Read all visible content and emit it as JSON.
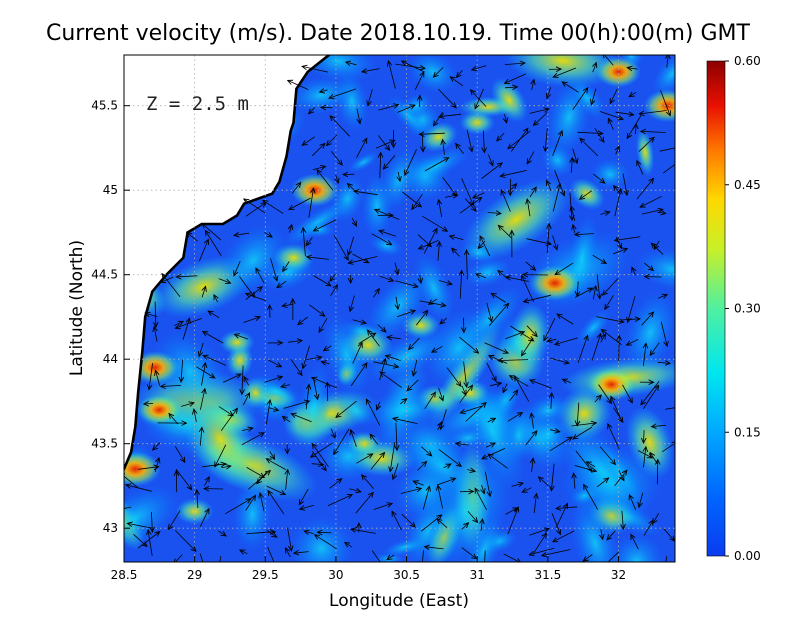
{
  "title": "Current velocity (m/s). Date 2018.10.19. Time 00(h):00(m) GMT",
  "depth_label": "Z = 2.5 m",
  "chart_data": {
    "type": "heatmap",
    "title": "Current velocity (m/s). Date 2018.10.19. Time 00(h):00(m) GMT",
    "xlabel": "Longitude (East)",
    "ylabel": "Latitude (North)",
    "xlim": [
      28.5,
      32.4
    ],
    "ylim": [
      42.8,
      45.8
    ],
    "x_ticks": [
      28.5,
      29,
      29.5,
      30,
      30.5,
      31,
      31.5,
      32
    ],
    "x_tick_labels": [
      "28.5",
      "29",
      "29.5",
      "30",
      "30.5",
      "31",
      "31.5",
      "32"
    ],
    "y_ticks": [
      43,
      43.5,
      44,
      44.5,
      45,
      45.5
    ],
    "y_tick_labels": [
      "43",
      "43.5",
      "44",
      "44.5",
      "45",
      "45.5"
    ],
    "grid": true,
    "colorbar": {
      "min": 0.0,
      "max": 0.6,
      "ticks": [
        0.0,
        0.15,
        0.3,
        0.45,
        0.6
      ],
      "tick_labels": [
        "0.00",
        "0.15",
        "0.30",
        "0.45",
        "0.60"
      ],
      "colormap": "jet"
    },
    "hotspots": [
      {
        "lon": 28.58,
        "lat": 43.35,
        "value": 0.55
      },
      {
        "lon": 28.72,
        "lat": 43.95,
        "value": 0.5
      },
      {
        "lon": 28.75,
        "lat": 43.7,
        "value": 0.45
      },
      {
        "lon": 29.85,
        "lat": 45.0,
        "value": 0.5
      },
      {
        "lon": 29.7,
        "lat": 44.6,
        "value": 0.4
      },
      {
        "lon": 31.55,
        "lat": 44.45,
        "value": 0.55
      },
      {
        "lon": 31.95,
        "lat": 43.85,
        "value": 0.5
      },
      {
        "lon": 32.35,
        "lat": 45.5,
        "value": 0.5
      },
      {
        "lon": 32.0,
        "lat": 45.7,
        "value": 0.45
      },
      {
        "lon": 30.95,
        "lat": 43.8,
        "value": 0.35
      },
      {
        "lon": 30.6,
        "lat": 44.2,
        "value": 0.35
      },
      {
        "lon": 29.3,
        "lat": 44.1,
        "value": 0.3
      },
      {
        "lon": 29.0,
        "lat": 43.1,
        "value": 0.35
      },
      {
        "lon": 31.0,
        "lat": 45.4,
        "value": 0.3
      },
      {
        "lon": 30.2,
        "lat": 43.5,
        "value": 0.3
      }
    ],
    "coastline": [
      [
        28.5,
        43.35
      ],
      [
        28.55,
        43.45
      ],
      [
        28.58,
        43.6
      ],
      [
        28.6,
        43.8
      ],
      [
        28.63,
        44.05
      ],
      [
        28.65,
        44.25
      ],
      [
        28.7,
        44.4
      ],
      [
        28.8,
        44.5
      ],
      [
        28.92,
        44.6
      ],
      [
        28.95,
        44.75
      ],
      [
        29.05,
        44.8
      ],
      [
        29.2,
        44.8
      ],
      [
        29.3,
        44.85
      ],
      [
        29.35,
        44.92
      ],
      [
        29.45,
        44.95
      ],
      [
        29.55,
        44.98
      ],
      [
        29.6,
        45.05
      ],
      [
        29.65,
        45.2
      ],
      [
        29.68,
        45.35
      ],
      [
        29.7,
        45.4
      ],
      [
        29.72,
        45.6
      ],
      [
        29.8,
        45.7
      ],
      [
        29.95,
        45.8
      ]
    ]
  },
  "colors": {
    "background": "#ffffff",
    "land": "#ffffff",
    "coast": "#000000",
    "grid": "#b0b0b0",
    "arrows": "#000000"
  }
}
